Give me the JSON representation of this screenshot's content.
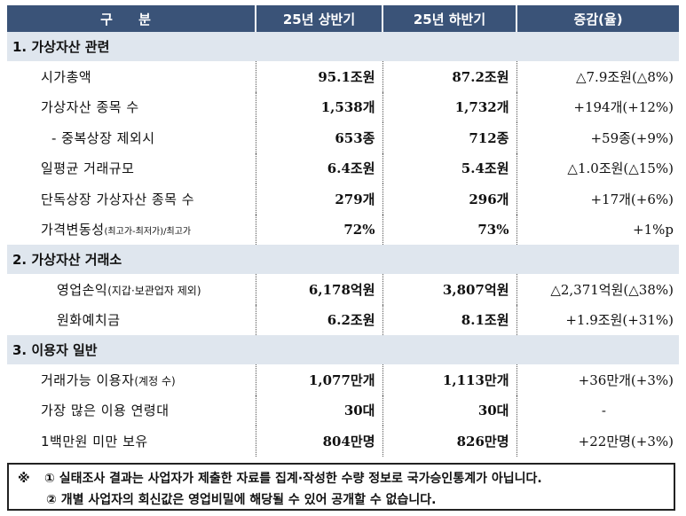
{
  "header": {
    "col1": "구 분",
    "col2": "25년 상반기",
    "col3": "25년 하반기",
    "col4": "증감(율)"
  },
  "sections": [
    {
      "title": "1. 가상자산 관련",
      "rows": [
        {
          "label": "시가총액",
          "note": "",
          "h1": "95.1조원",
          "h2": "87.2조원",
          "delta": "△7.9조원(△8%)"
        },
        {
          "label": "가상자산 종목 수",
          "note": "",
          "h1": "1,538개",
          "h2": "1,732개",
          "delta": "+194개(+12%)"
        },
        {
          "label": "- 중복상장 제외시",
          "note": "",
          "h1": "653종",
          "h2": "712종",
          "delta": "+59종(+9%)"
        },
        {
          "label": "일평균 거래규모",
          "note": "",
          "h1": "6.4조원",
          "h2": "5.4조원",
          "delta": "△1.0조원(△15%)"
        },
        {
          "label": "단독상장 가상자산 종목 수",
          "note": "",
          "h1": "279개",
          "h2": "296개",
          "delta": "+17개(+6%)"
        },
        {
          "label": "가격변동성",
          "note": "(최고가-최저가)/최고가",
          "h1": "72%",
          "h2": "73%",
          "delta": "+1%p"
        }
      ]
    },
    {
      "title": "2. 가상자산 거래소",
      "rows": [
        {
          "label": "영업손익",
          "note": "(지갑·보관업자 제외)",
          "h1": "6,178억원",
          "h2": "3,807억원",
          "delta": "△2,371억원(△38%)"
        },
        {
          "label": "원화예치금",
          "note": "",
          "h1": "6.2조원",
          "h2": "8.1조원",
          "delta": "+1.9조원(+31%)"
        }
      ]
    },
    {
      "title": "3. 이용자 일반",
      "rows": [
        {
          "label": "거래가능 이용자",
          "note": "(계정 수)",
          "h1": "1,077만개",
          "h2": "1,113만개",
          "delta": "+36만개(+3%)"
        },
        {
          "label": "가장 많은 이용 연령대",
          "note": "",
          "h1": "30대",
          "h2": "30대",
          "delta": "-"
        },
        {
          "label": "1백만원 미만 보유",
          "note": "",
          "h1": "804만명",
          "h2": "826만명",
          "delta": "+22만명(+3%)"
        }
      ]
    }
  ],
  "footnote": {
    "mark": "※",
    "line1": "① 실태조사 결과는 사업자가 제출한 자료를 집계·작성한 수량 정보로 국가승인통계가 아닙니다.",
    "line2": "② 개별 사업자의 회신값은 영업비밀에 해당될 수 있어 공개할 수 없습니다."
  }
}
